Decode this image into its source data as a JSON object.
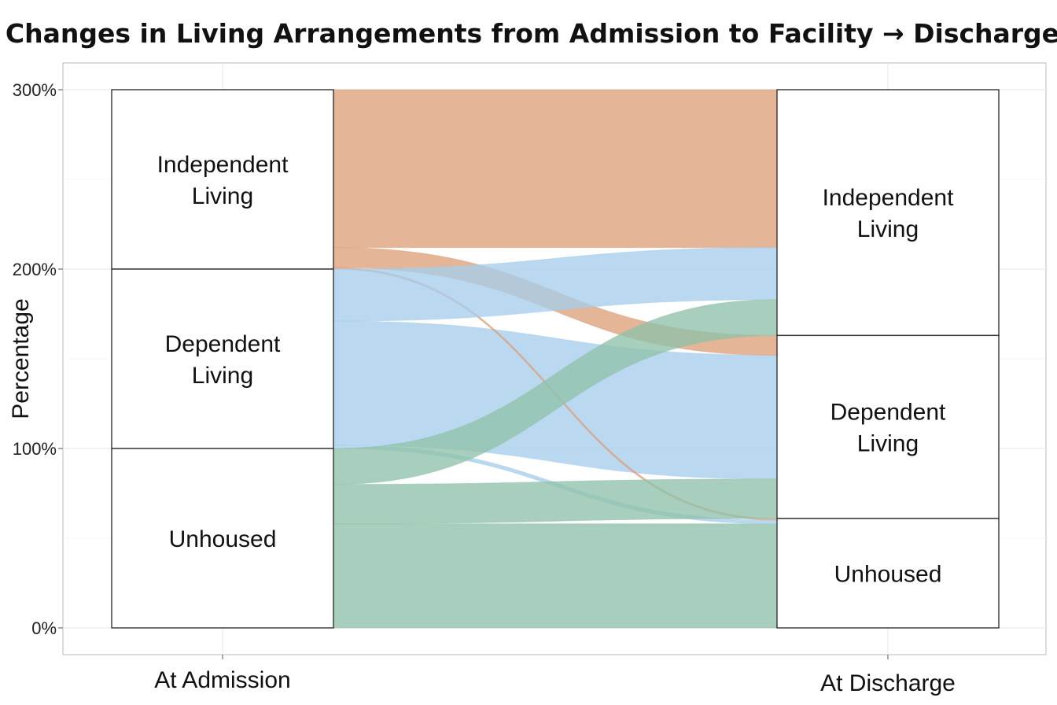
{
  "chart_data": {
    "type": "alluvial",
    "title": "Changes in Living Arrangements from Admission to Facility → Discharge",
    "xlabel": "",
    "ylabel": "Percentage",
    "y_ticks": [
      "0%",
      "100%",
      "200%",
      "300%"
    ],
    "ylim": [
      0,
      300
    ],
    "grid": true,
    "axes": [
      "At Admission",
      "At Discharge"
    ],
    "categories": [
      "Independent Living",
      "Dependent Living",
      "Unhoused"
    ],
    "category_labels": [
      [
        "Independent",
        "Living"
      ],
      [
        "Dependent",
        "Living"
      ],
      [
        "Unhoused"
      ]
    ],
    "colors": {
      "Independent Living": "#dca07a",
      "Dependent Living": "#a6cdeb",
      "Unhoused": "#8fc2aa"
    },
    "admission_totals": {
      "Independent Living": 100,
      "Dependent Living": 100,
      "Unhoused": 100
    },
    "discharge_totals": {
      "Independent Living": 137,
      "Dependent Living": 102,
      "Unhoused": 61
    },
    "flows": [
      {
        "from": "Independent Living",
        "to": "Independent Living",
        "value": 88
      },
      {
        "from": "Independent Living",
        "to": "Dependent Living",
        "value": 11
      },
      {
        "from": "Independent Living",
        "to": "Unhoused",
        "value": 1
      },
      {
        "from": "Dependent Living",
        "to": "Independent Living",
        "value": 29
      },
      {
        "from": "Dependent Living",
        "to": "Dependent Living",
        "value": 69
      },
      {
        "from": "Dependent Living",
        "to": "Unhoused",
        "value": 2
      },
      {
        "from": "Unhoused",
        "to": "Independent Living",
        "value": 20
      },
      {
        "from": "Unhoused",
        "to": "Dependent Living",
        "value": 22
      },
      {
        "from": "Unhoused",
        "to": "Unhoused",
        "value": 58
      }
    ]
  }
}
